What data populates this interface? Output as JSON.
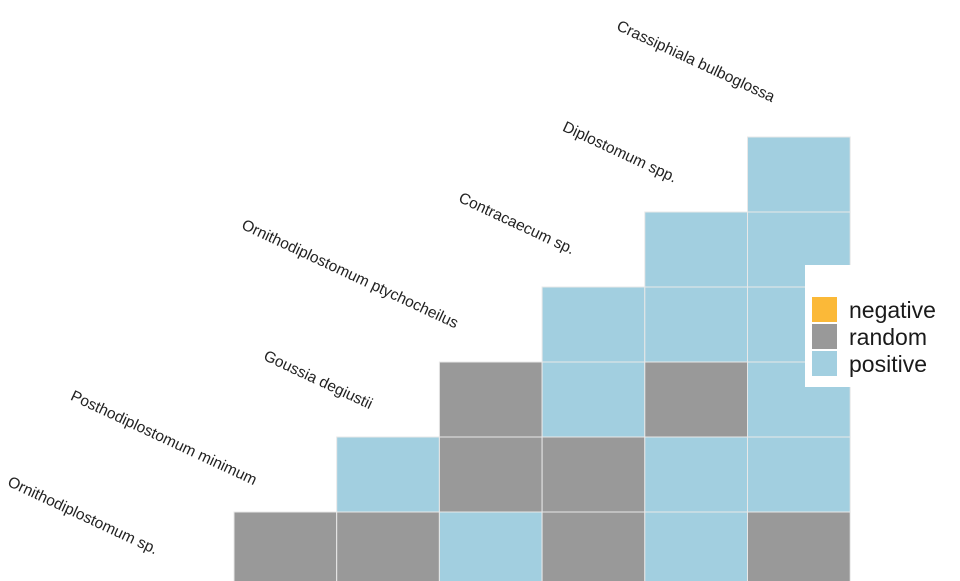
{
  "chart_data": {
    "type": "heatmap",
    "title": "",
    "species": [
      "Ornithodiplostomum sp.",
      "Posthodiplostomum minimum",
      "Goussia degiustii",
      "Ornithodiplostomum ptychocheilus",
      "Contracaecum sp.",
      "Diplostomum spp.",
      "Crassiphiala bulboglossa"
    ],
    "rows": [
      [
        "positive"
      ],
      [
        "positive",
        "positive"
      ],
      [
        "positive",
        "positive",
        "positive"
      ],
      [
        "random",
        "positive",
        "random",
        "positive"
      ],
      [
        "positive",
        "random",
        "random",
        "positive",
        "positive"
      ],
      [
        "random",
        "random",
        "positive",
        "random",
        "positive",
        "random"
      ]
    ],
    "legend": {
      "placement": "right",
      "items": [
        {
          "key": "negative",
          "label": "negative",
          "color": "#FBB938"
        },
        {
          "key": "random",
          "label": "random",
          "color": "#999999"
        },
        {
          "key": "positive",
          "label": "positive",
          "color": "#A2CFE0"
        }
      ]
    }
  }
}
